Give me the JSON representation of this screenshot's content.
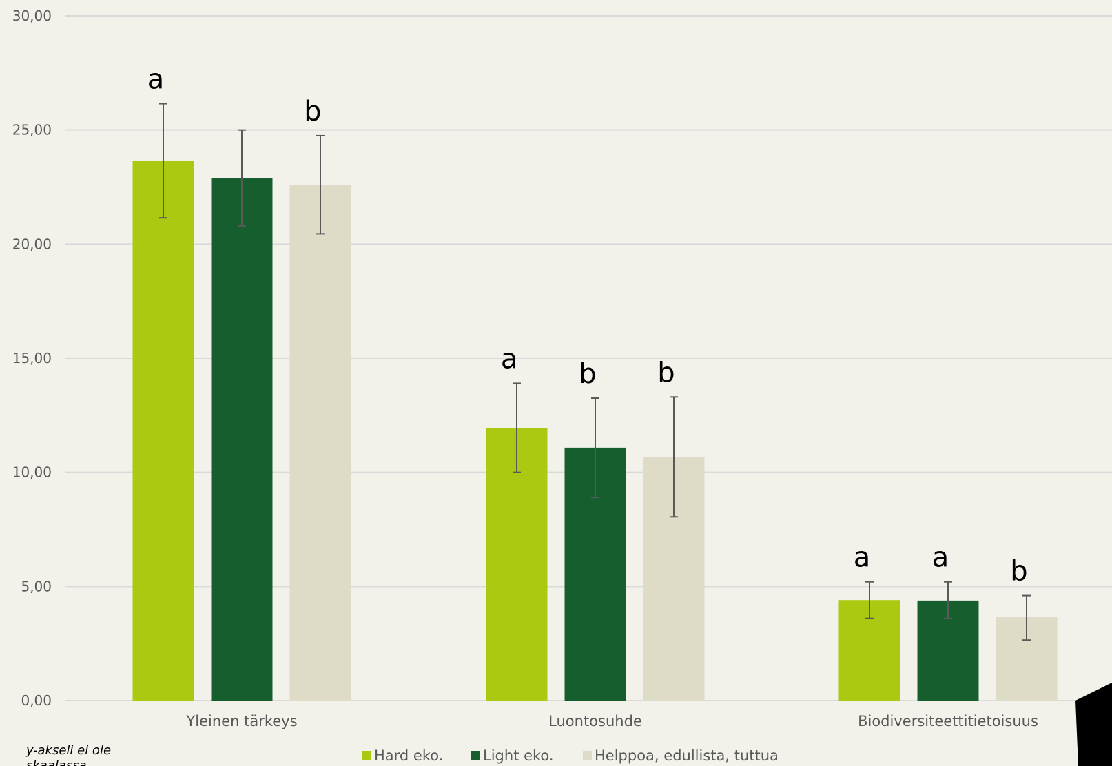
{
  "colors": {
    "background": "#f2f1ea",
    "grid": "#d9d9d9",
    "axis_text": "#595959",
    "error_bar": "#595959",
    "corner_shape": "#000000"
  },
  "note_lines": [
    "y-akseli ei ole",
    "skaalassa"
  ],
  "chart_data": {
    "type": "bar",
    "categories": [
      "Yleinen tärkeys",
      "Luontosuhde",
      "Biodiversiteettitietoisuus"
    ],
    "series": [
      {
        "name": "Hard eko.",
        "color": "#abc910",
        "values": [
          23.65,
          11.95,
          4.4
        ],
        "error_low": [
          21.15,
          10.0,
          3.6
        ],
        "error_high": [
          26.15,
          13.9,
          5.2
        ],
        "labels": [
          "a",
          "a",
          "a"
        ]
      },
      {
        "name": "Light eko.",
        "color": "#175e2f",
        "values": [
          22.9,
          11.08,
          4.38
        ],
        "error_low": [
          20.8,
          8.9,
          3.6
        ],
        "error_high": [
          25.0,
          13.25,
          5.2
        ],
        "labels": [
          "",
          "b",
          "a"
        ]
      },
      {
        "name": "Helppoa, edullista, tuttua",
        "color": "#dedcc7",
        "values": [
          22.6,
          10.68,
          3.65
        ],
        "error_low": [
          20.45,
          8.05,
          2.65
        ],
        "error_high": [
          24.75,
          13.3,
          4.6
        ],
        "labels": [
          "b",
          "b",
          "b"
        ]
      }
    ],
    "y_ticks": [
      "0,00",
      "5,00",
      "10,00",
      "15,00",
      "20,00",
      "25,00",
      "30,00"
    ],
    "ylim": [
      0,
      30
    ],
    "grid": true,
    "legend_position": "bottom",
    "title": "",
    "xlabel": "",
    "ylabel": ""
  }
}
